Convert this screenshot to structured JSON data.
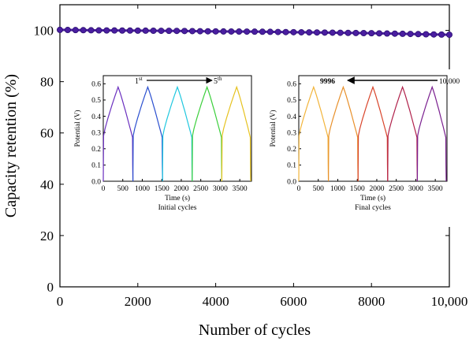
{
  "chart_data": [
    {
      "type": "line",
      "xlabel": "Number of cycles",
      "ylabel": "Capacity retention (%)",
      "xlim": [
        0,
        10000
      ],
      "ylim": [
        0,
        110
      ],
      "xticks": [
        0,
        2000,
        4000,
        6000,
        8000,
        10000
      ],
      "xtick_labels": [
        "0",
        "2000",
        "4000",
        "6000",
        "8000",
        "10,000"
      ],
      "yticks": [
        0,
        20,
        40,
        60,
        80,
        100
      ],
      "ytick_labels": [
        "0",
        "20",
        "40",
        "60",
        "80",
        "100"
      ],
      "series": [
        {
          "color": "#4a1ea0",
          "x": [
            0,
            1000,
            2000,
            3000,
            4000,
            5000,
            6000,
            7000,
            8000,
            9000,
            10000
          ],
          "y": [
            100.2,
            100.0,
            99.9,
            99.8,
            99.6,
            99.5,
            99.3,
            99.1,
            98.9,
            98.6,
            98.3
          ]
        }
      ]
    },
    {
      "type": "line",
      "xlabel": "Time (s)",
      "ylabel": "Potential (V)",
      "caption": "Initial cycles",
      "xlim": [
        0,
        3800
      ],
      "ylim": [
        0,
        0.65
      ],
      "xticks": [
        0,
        500,
        1000,
        1500,
        2000,
        2500,
        3000,
        3500
      ],
      "yticks": [
        0.0,
        0.1,
        0.2,
        0.3,
        0.4,
        0.5,
        0.6
      ],
      "annotation": {
        "start_base": "1",
        "start_sup": "st",
        "end_base": "5",
        "end_sup": "th",
        "direction": "right"
      },
      "cycles": [
        {
          "start": 0,
          "peak": 380,
          "end": 760,
          "color": "#6a2fbf"
        },
        {
          "start": 760,
          "peak": 1140,
          "end": 1520,
          "color": "#2a4fcf"
        },
        {
          "start": 1520,
          "peak": 1900,
          "end": 2280,
          "color": "#1fc7df"
        },
        {
          "start": 2280,
          "peak": 2660,
          "end": 3040,
          "color": "#3bcf3b"
        },
        {
          "start": 3040,
          "peak": 3420,
          "end": 3780,
          "color": "#e6c21f"
        }
      ],
      "peak_v": 0.58
    },
    {
      "type": "line",
      "xlabel": "Time (s)",
      "ylabel": "Potential (V)",
      "caption": "Final cycles",
      "xlim": [
        0,
        3800
      ],
      "ylim": [
        0,
        0.65
      ],
      "xticks": [
        0,
        500,
        1000,
        1500,
        2000,
        2500,
        3000,
        3500
      ],
      "yticks": [
        0.0,
        0.1,
        0.2,
        0.3,
        0.4,
        0.5,
        0.6
      ],
      "annotation": {
        "start_base": "9996",
        "end_base": "10,000",
        "direction": "left"
      },
      "cycles": [
        {
          "start": 0,
          "peak": 380,
          "end": 760,
          "color": "#f2b43a"
        },
        {
          "start": 760,
          "peak": 1140,
          "end": 1520,
          "color": "#e8902a"
        },
        {
          "start": 1520,
          "peak": 1900,
          "end": 2280,
          "color": "#d9442a"
        },
        {
          "start": 2280,
          "peak": 2660,
          "end": 3040,
          "color": "#b0204a"
        },
        {
          "start": 3040,
          "peak": 3420,
          "end": 3780,
          "color": "#7a1f8f"
        }
      ],
      "peak_v": 0.58
    }
  ]
}
